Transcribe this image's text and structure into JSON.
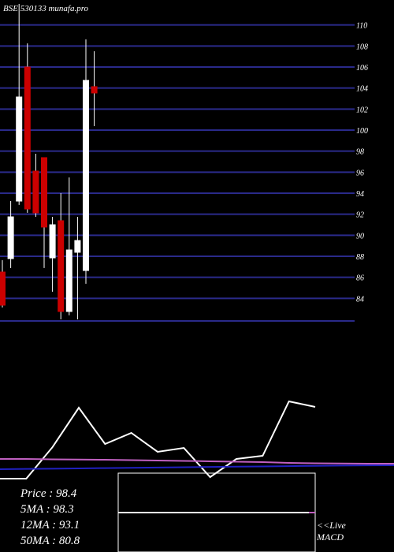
{
  "chart_data": [
    {
      "type": "candlestick",
      "title": "BSE 530133 munafa.pro",
      "categories": [
        null,
        null,
        null,
        null,
        null,
        null,
        null,
        null,
        null,
        null,
        null,
        null
      ],
      "open": [
        86.5,
        87.78,
        93.25,
        106,
        96.1,
        97.38,
        87.85,
        91.38,
        82.75,
        88.38,
        86.65,
        104.13
      ],
      "high": [
        87.63,
        93.25,
        112,
        108.25,
        97.75,
        97.38,
        91.75,
        94,
        95.5,
        91.75,
        108.63,
        107.5
      ],
      "low": [
        83.13,
        86.88,
        92.88,
        92.13,
        91.75,
        86.88,
        84.63,
        82,
        82.38,
        82,
        85.38,
        100.38
      ],
      "close": [
        83.35,
        91.75,
        103.15,
        92.5,
        92.13,
        90.78,
        91,
        82.75,
        88.6,
        89.5,
        104.73,
        103.53
      ],
      "up_color": "#ffffff",
      "down_color": "#cc0000",
      "ylim": [
        82,
        112
      ],
      "yticks": [
        84,
        86,
        88,
        90,
        92,
        94,
        96,
        98,
        100,
        102,
        104,
        106,
        108,
        110
      ],
      "grid": true,
      "grid_color": "#2a2a8a"
    },
    {
      "type": "line",
      "categories": [
        null,
        null,
        null,
        null,
        null,
        null,
        null,
        null,
        null,
        null,
        null,
        null,
        null,
        null,
        null,
        null
      ],
      "series": [
        {
          "color": "#ffffff",
          "values": [
            10.8,
            10.8,
            44.2,
            85.8,
            47.5,
            59.2,
            39.2,
            43.3,
            12.5,
            31.7,
            35,
            92.5,
            86.7,
            null,
            null,
            null
          ]
        },
        {
          "color": "#c060c0",
          "values": [
            31.7,
            31.7,
            31.3,
            31,
            30.8,
            30.4,
            30,
            29.6,
            29.2,
            28.8,
            28.3,
            27.5,
            27.1,
            26.9,
            26.7,
            26.7
          ]
        },
        {
          "color": "#2020c0",
          "values": [
            20.8,
            21.1,
            21.4,
            21.7,
            22,
            22.3,
            22.6,
            22.9,
            23.2,
            23.5,
            23.8,
            24.1,
            24.4,
            24.7,
            24.9,
            25
          ]
        }
      ],
      "ylim": [
        0,
        100
      ],
      "annotations": [
        "Price   : 98.4",
        "5MA : 98.3",
        "12MA : 93.1",
        "50MA : 80.8"
      ]
    },
    {
      "type": "line",
      "categories": [
        null,
        null,
        null,
        null,
        null,
        null,
        null,
        null,
        null,
        null,
        null,
        null,
        null
      ],
      "series": [
        {
          "color": "#ffffff",
          "values": [
            50,
            50,
            50,
            50,
            50,
            50,
            50,
            50,
            50,
            50,
            50,
            50,
            50
          ]
        }
      ],
      "ylim": [
        0,
        100
      ],
      "annotations": [
        "<<Live",
        "MACD"
      ]
    }
  ]
}
